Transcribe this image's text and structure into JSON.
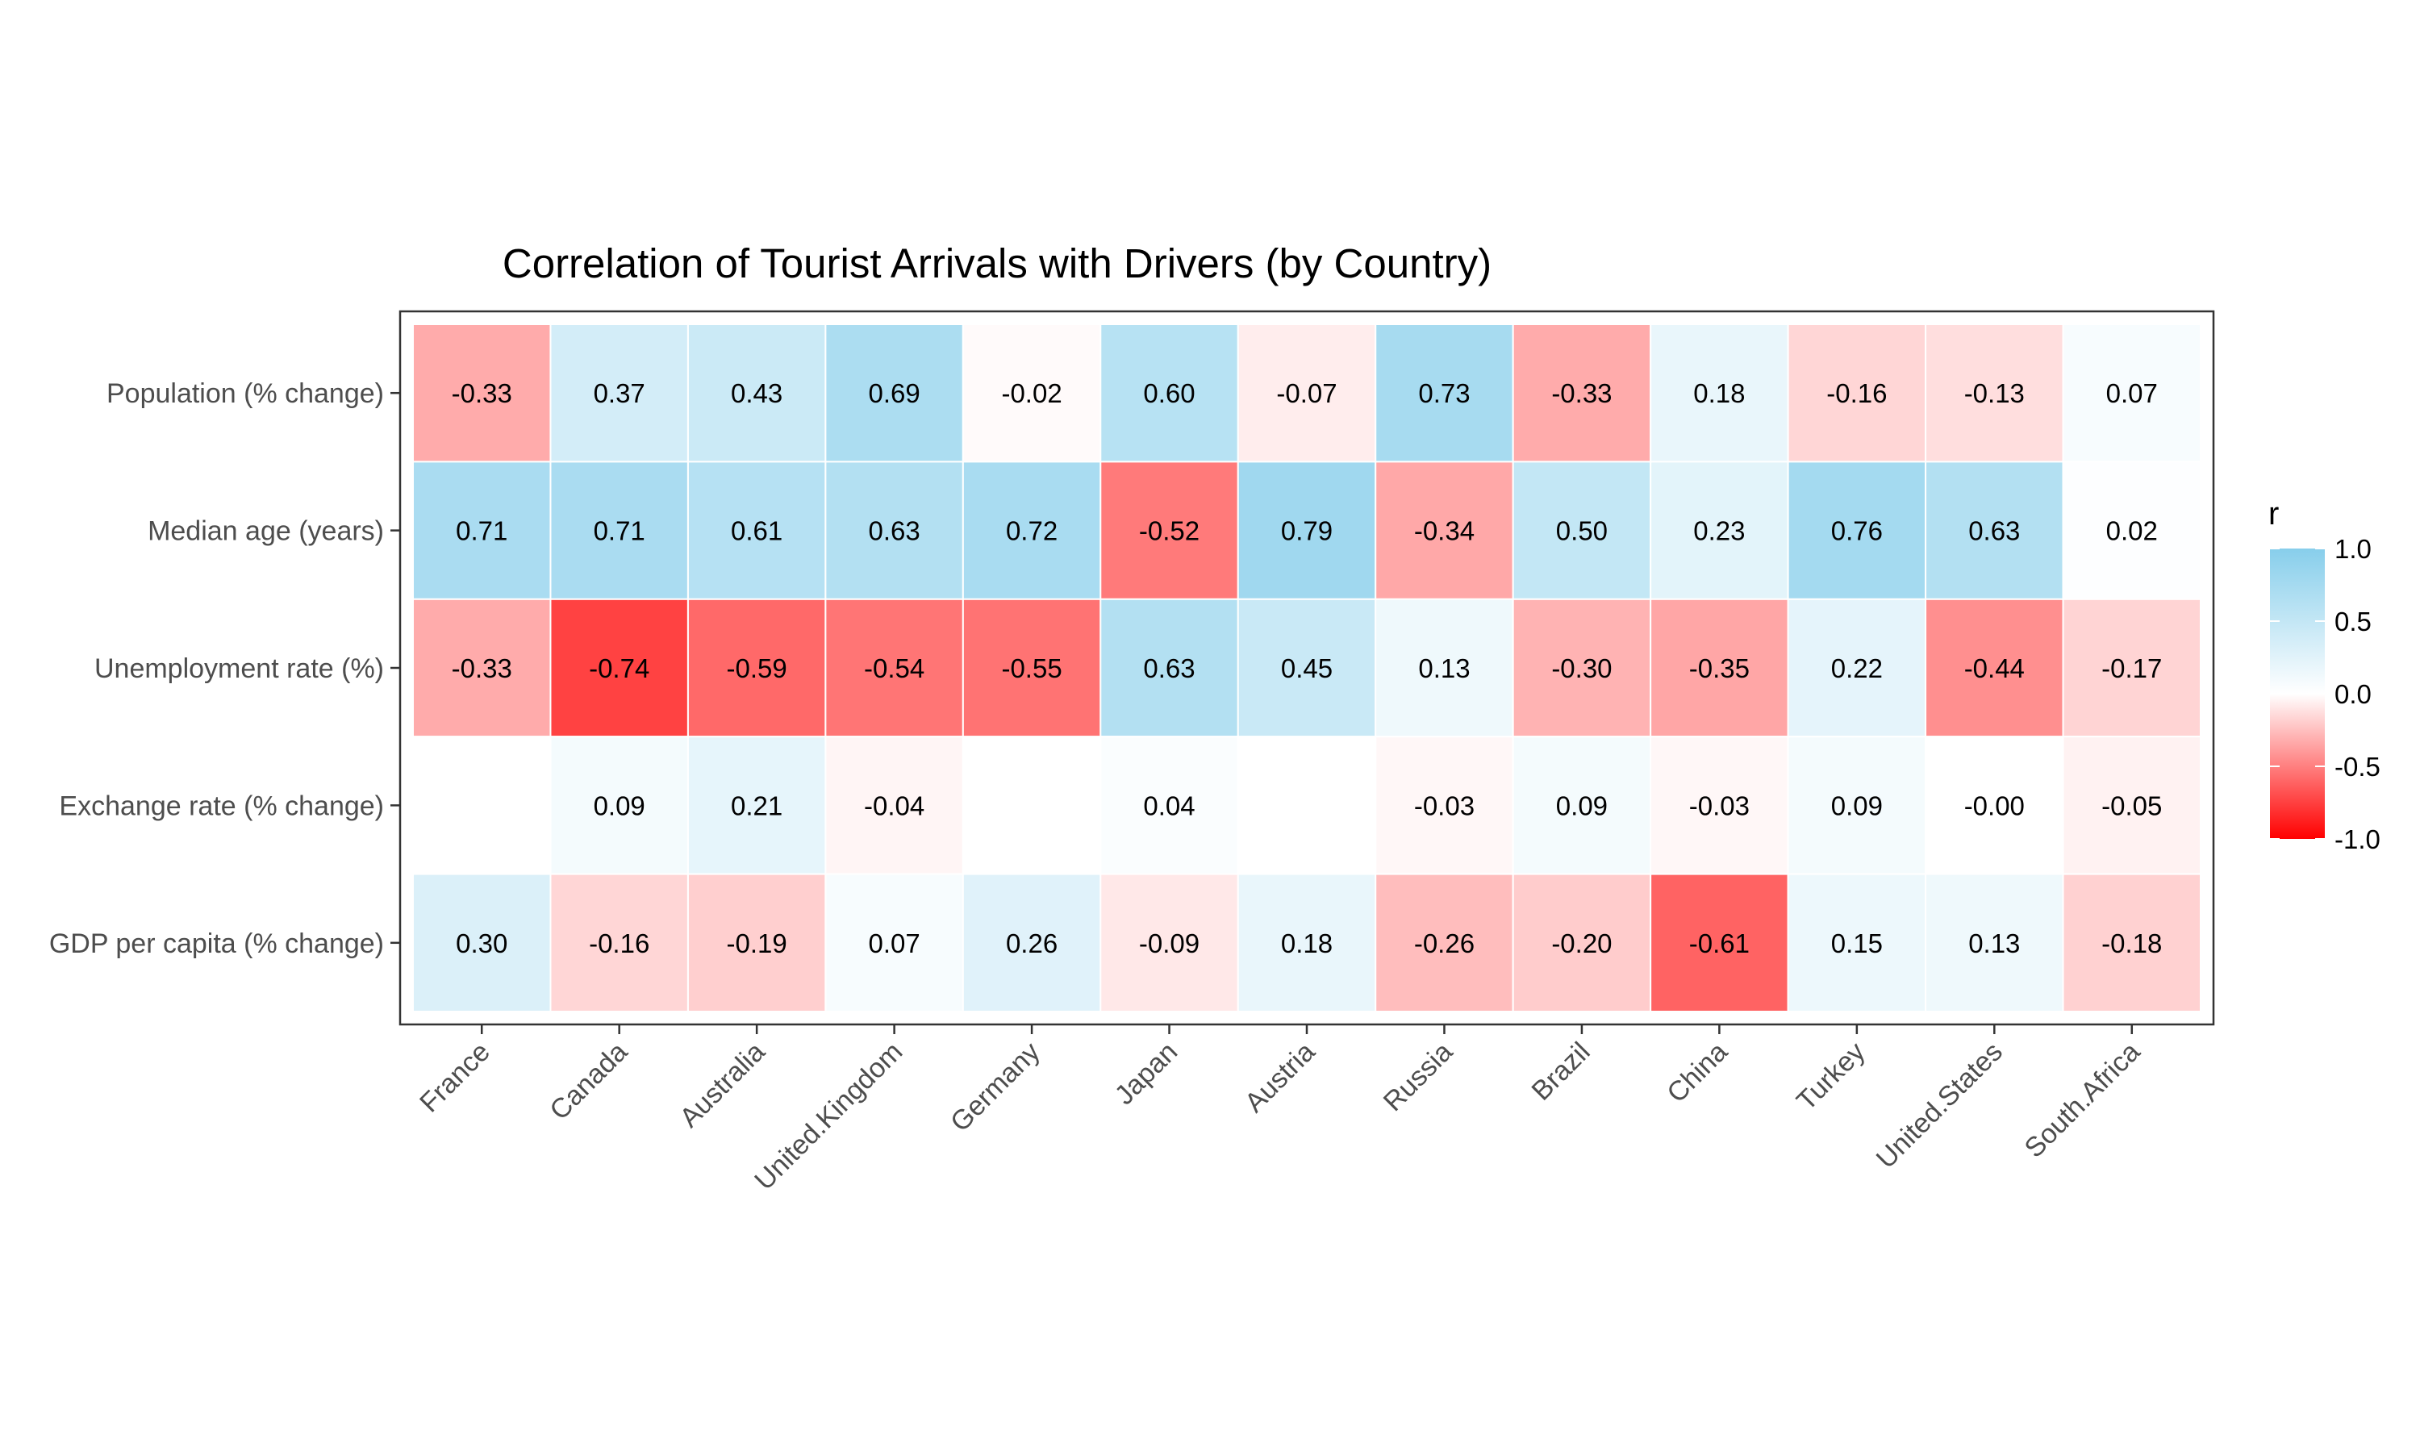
{
  "chart_data": {
    "type": "heatmap",
    "title": "Correlation of Tourist Arrivals with Drivers (by Country)",
    "xlabel": "",
    "ylabel": "",
    "x_categories": [
      "France",
      "Canada",
      "Australia",
      "United.Kingdom",
      "Germany",
      "Japan",
      "Austria",
      "Russia",
      "Brazil",
      "China",
      "Turkey",
      "United.States",
      "South.Africa"
    ],
    "y_categories": [
      "Population (% change)",
      "Median age (years)",
      "Unemployment rate (%)",
      "Exchange rate (% change)",
      "GDP per capita (% change)"
    ],
    "values": [
      [
        -0.33,
        0.37,
        0.43,
        0.69,
        -0.02,
        0.6,
        -0.07,
        0.73,
        -0.33,
        0.18,
        -0.16,
        -0.13,
        0.07
      ],
      [
        0.71,
        0.71,
        0.61,
        0.63,
        0.72,
        -0.52,
        0.79,
        -0.34,
        0.5,
        0.23,
        0.76,
        0.63,
        0.02
      ],
      [
        -0.33,
        -0.74,
        -0.59,
        -0.54,
        -0.55,
        0.63,
        0.45,
        0.13,
        -0.3,
        -0.35,
        0.22,
        -0.44,
        -0.17
      ],
      [
        null,
        0.09,
        0.21,
        -0.04,
        null,
        0.04,
        null,
        -0.03,
        0.09,
        -0.03,
        0.09,
        -0.0,
        -0.05
      ],
      [
        0.3,
        -0.16,
        -0.19,
        0.07,
        0.26,
        -0.09,
        0.18,
        -0.26,
        -0.2,
        -0.61,
        0.15,
        0.13,
        -0.18
      ]
    ],
    "labels": [
      [
        "-0.33",
        "0.37",
        "0.43",
        "0.69",
        "-0.02",
        "0.60",
        "-0.07",
        "0.73",
        "-0.33",
        "0.18",
        "-0.16",
        "-0.13",
        "0.07"
      ],
      [
        "0.71",
        "0.71",
        "0.61",
        "0.63",
        "0.72",
        "-0.52",
        "0.79",
        "-0.34",
        "0.50",
        "0.23",
        "0.76",
        "0.63",
        "0.02"
      ],
      [
        "-0.33",
        "-0.74",
        "-0.59",
        "-0.54",
        "-0.55",
        "0.63",
        "0.45",
        "0.13",
        "-0.30",
        "-0.35",
        "0.22",
        "-0.44",
        "-0.17"
      ],
      [
        "",
        "0.09",
        "0.21",
        "-0.04",
        "",
        "0.04",
        "",
        "-0.03",
        "0.09",
        "-0.03",
        "0.09",
        "-0.00",
        "-0.05"
      ],
      [
        "0.30",
        "-0.16",
        "-0.19",
        "0.07",
        "0.26",
        "-0.09",
        "0.18",
        "-0.26",
        "-0.20",
        "-0.61",
        "0.15",
        "0.13",
        "-0.18"
      ]
    ],
    "legend": {
      "title": "r",
      "ticks": [
        "1.0",
        "0.5",
        "0.0",
        "-0.5",
        "-1.0"
      ],
      "tick_values": [
        1.0,
        0.5,
        0.0,
        -0.5,
        -1.0
      ],
      "range": [
        -1,
        1
      ],
      "placement": "right"
    },
    "colors": {
      "low": "#ff0000",
      "mid": "#ffffff",
      "high": "#87ceeb"
    }
  }
}
